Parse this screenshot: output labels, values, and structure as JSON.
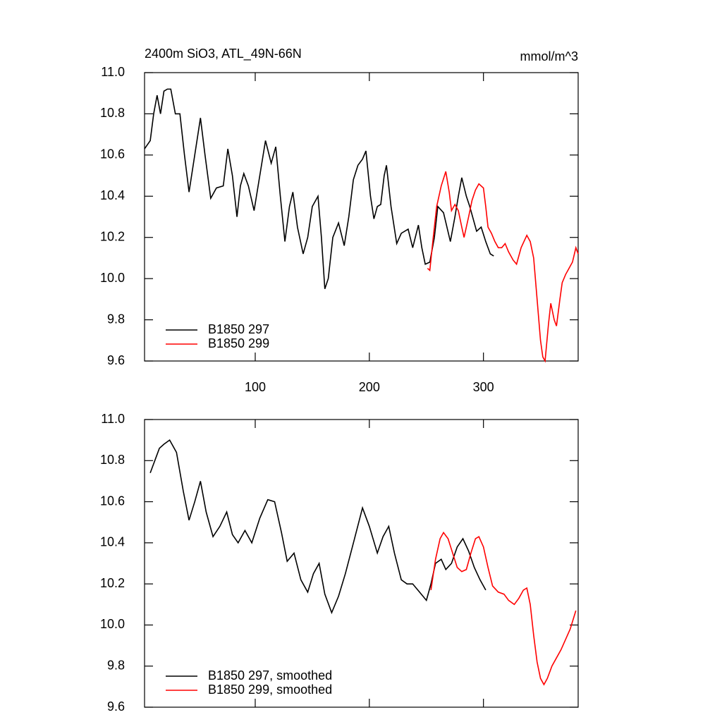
{
  "chart_data": [
    {
      "type": "line",
      "title": "2400m SiO3, ATL_49N-66N",
      "units": "mmol/m^3",
      "xlim": [
        3,
        383
      ],
      "xticks": [
        100,
        200,
        300
      ],
      "ylim": [
        9.6,
        11.0
      ],
      "yticks": [
        {
          "value": 11.0,
          "label": "11.0"
        },
        10.8,
        10.6,
        10.4,
        10.2,
        {
          "value": 10.0,
          "label": "10.0"
        },
        9.8,
        9.6
      ],
      "legend": "lower left",
      "series": [
        {
          "name": "B1850 297",
          "color": "#000000",
          "x": [
            3,
            8,
            11,
            14,
            17,
            20,
            23,
            26,
            30,
            34,
            38,
            42,
            47,
            52,
            56,
            61,
            66,
            72,
            76,
            80,
            84,
            87,
            90,
            94,
            99,
            104,
            109,
            114,
            118,
            122,
            126,
            130,
            133,
            137,
            142,
            146,
            150,
            155,
            158,
            161,
            164,
            168,
            173,
            178,
            182,
            186,
            190,
            194,
            197,
            201,
            204,
            207,
            210,
            213,
            215,
            219,
            224,
            228,
            234,
            238,
            243,
            246,
            249,
            253,
            257,
            260,
            265,
            268,
            271,
            275,
            278,
            281,
            285,
            288,
            294,
            298,
            302,
            306,
            309
          ],
          "values": [
            10.63,
            10.67,
            10.8,
            10.89,
            10.8,
            10.91,
            10.92,
            10.92,
            10.8,
            10.8,
            10.6,
            10.42,
            10.6,
            10.78,
            10.6,
            10.39,
            10.44,
            10.45,
            10.63,
            10.5,
            10.3,
            10.45,
            10.51,
            10.45,
            10.33,
            10.5,
            10.67,
            10.56,
            10.64,
            10.4,
            10.18,
            10.35,
            10.42,
            10.25,
            10.12,
            10.2,
            10.35,
            10.4,
            10.2,
            9.95,
            10.0,
            10.2,
            10.27,
            10.16,
            10.3,
            10.48,
            10.55,
            10.58,
            10.62,
            10.4,
            10.29,
            10.35,
            10.36,
            10.5,
            10.55,
            10.35,
            10.17,
            10.22,
            10.24,
            10.15,
            10.26,
            10.15,
            10.07,
            10.08,
            10.2,
            10.35,
            10.32,
            10.25,
            10.18,
            10.3,
            10.4,
            10.49,
            10.4,
            10.35,
            10.23,
            10.25,
            10.18,
            10.12,
            10.11
          ]
        },
        {
          "name": "B1850 299",
          "color": "#ff0000",
          "x": [
            251,
            253,
            256,
            259,
            263,
            267,
            270,
            272,
            275,
            278,
            281,
            283,
            287,
            290,
            293,
            296,
            300,
            302,
            304,
            307,
            310,
            313,
            316,
            319,
            322,
            326,
            329,
            333,
            338,
            341,
            344,
            347,
            350,
            352,
            354,
            357,
            359,
            362,
            364,
            367,
            369,
            372,
            375,
            378,
            381,
            383
          ],
          "values": [
            10.05,
            10.04,
            10.2,
            10.35,
            10.45,
            10.52,
            10.42,
            10.33,
            10.36,
            10.33,
            10.25,
            10.2,
            10.3,
            10.38,
            10.43,
            10.46,
            10.44,
            10.35,
            10.25,
            10.22,
            10.18,
            10.15,
            10.15,
            10.17,
            10.13,
            10.09,
            10.07,
            10.15,
            10.21,
            10.18,
            10.1,
            9.9,
            9.7,
            9.62,
            9.6,
            9.78,
            9.88,
            9.8,
            9.77,
            9.9,
            9.98,
            10.02,
            10.05,
            10.08,
            10.15,
            10.12
          ]
        }
      ]
    },
    {
      "type": "line",
      "xlim": [
        3,
        383
      ],
      "ylim": [
        9.6,
        11.0
      ],
      "yticks": [
        {
          "value": 11.0,
          "label": "11.0"
        },
        10.8,
        10.6,
        10.4,
        10.2,
        {
          "value": 10.0,
          "label": "10.0"
        },
        9.8,
        9.6
      ],
      "legend": "lower left",
      "series": [
        {
          "name": "B1850 297, smoothed",
          "color": "#000000",
          "x": [
            8,
            12,
            16,
            20,
            25,
            31,
            37,
            42,
            47,
            52,
            57,
            63,
            69,
            75,
            80,
            85,
            91,
            97,
            104,
            111,
            117,
            123,
            128,
            134,
            140,
            146,
            151,
            156,
            161,
            167,
            173,
            179,
            187,
            194,
            200,
            207,
            212,
            217,
            222,
            228,
            233,
            238,
            244,
            250,
            254,
            258,
            263,
            267,
            272,
            277,
            282,
            287,
            292,
            297,
            302
          ],
          "values": [
            10.74,
            10.8,
            10.86,
            10.88,
            10.9,
            10.84,
            10.65,
            10.51,
            10.6,
            10.7,
            10.55,
            10.43,
            10.48,
            10.55,
            10.44,
            10.4,
            10.46,
            10.4,
            10.52,
            10.61,
            10.6,
            10.45,
            10.31,
            10.35,
            10.22,
            10.16,
            10.25,
            10.3,
            10.15,
            10.06,
            10.14,
            10.25,
            10.42,
            10.57,
            10.48,
            10.35,
            10.43,
            10.48,
            10.35,
            10.22,
            10.2,
            10.2,
            10.16,
            10.12,
            10.2,
            10.3,
            10.32,
            10.27,
            10.3,
            10.38,
            10.42,
            10.36,
            10.28,
            10.22,
            10.17
          ]
        },
        {
          "name": "B1850 299, smoothed",
          "color": "#ff0000",
          "x": [
            254,
            258,
            262,
            265,
            269,
            273,
            277,
            281,
            285,
            289,
            293,
            296,
            300,
            304,
            308,
            313,
            318,
            322,
            327,
            331,
            335,
            338,
            341,
            344,
            347,
            350,
            353,
            356,
            360,
            364,
            368,
            372,
            376,
            381
          ],
          "values": [
            10.17,
            10.32,
            10.42,
            10.45,
            10.42,
            10.35,
            10.28,
            10.26,
            10.27,
            10.35,
            10.42,
            10.43,
            10.38,
            10.28,
            10.19,
            10.16,
            10.15,
            10.12,
            10.1,
            10.13,
            10.17,
            10.18,
            10.1,
            9.95,
            9.82,
            9.74,
            9.71,
            9.74,
            9.8,
            9.84,
            9.88,
            9.93,
            9.98,
            10.07
          ]
        }
      ]
    }
  ]
}
